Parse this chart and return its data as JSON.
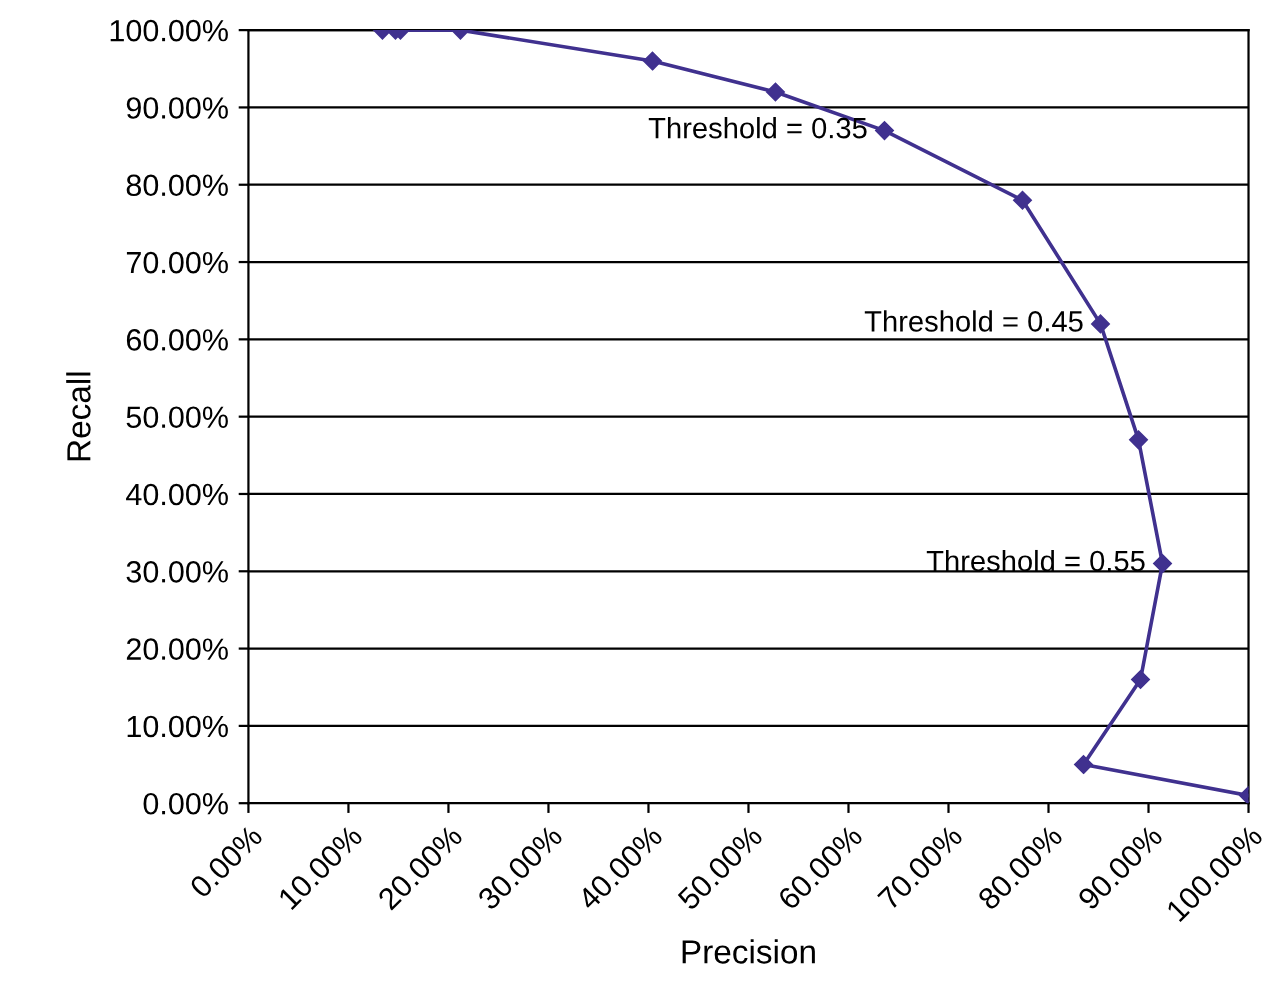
{
  "chart_data": {
    "type": "line",
    "xlabel": "Precision",
    "ylabel": "Recall",
    "series": [
      {
        "color": "#40318f",
        "x": [
          13.4,
          14.7,
          15.2,
          21.2,
          40.4,
          52.7,
          63.6,
          77.4,
          85.2,
          89.0,
          91.4,
          89.2,
          83.5,
          100
        ],
        "values": [
          100,
          100,
          100,
          100,
          96,
          92,
          87,
          78,
          62,
          47,
          31,
          16,
          5,
          1
        ]
      }
    ],
    "marker": "diamond",
    "line_style": "solid",
    "grid": "y",
    "xlim": [
      0,
      100
    ],
    "ylim": [
      0,
      100
    ],
    "xticks": [
      {
        "value": 0,
        "label": "0.00%"
      },
      {
        "value": 10,
        "label": "10.00%"
      },
      {
        "value": 20,
        "label": "20.00%"
      },
      {
        "value": 30,
        "label": "30.00%"
      },
      {
        "value": 40,
        "label": "40.00%"
      },
      {
        "value": 50,
        "label": "50.00%"
      },
      {
        "value": 60,
        "label": "60.00%"
      },
      {
        "value": 70,
        "label": "70.00%"
      },
      {
        "value": 80,
        "label": "80.00%"
      },
      {
        "value": 90,
        "label": "90.00%"
      },
      {
        "value": 100,
        "label": "100.00%"
      }
    ],
    "yticks": [
      {
        "value": 0,
        "label": "0.00%"
      },
      {
        "value": 10,
        "label": "10.00%"
      },
      {
        "value": 20,
        "label": "20.00%"
      },
      {
        "value": 30,
        "label": "30.00%"
      },
      {
        "value": 40,
        "label": "40.00%"
      },
      {
        "value": 50,
        "label": "50.00%"
      },
      {
        "value": 60,
        "label": "60.00%"
      },
      {
        "value": 70,
        "label": "70.00%"
      },
      {
        "value": 80,
        "label": "80.00%"
      },
      {
        "value": 90,
        "label": "90.00%"
      },
      {
        "value": 100,
        "label": "100.00%"
      }
    ],
    "annotations": [
      {
        "text": "Threshold = 0.35",
        "x": 63.6,
        "y": 87
      },
      {
        "text": "Threshold = 0.45",
        "x": 85.2,
        "y": 62
      },
      {
        "text": "Threshold = 0.55",
        "x": 91.4,
        "y": 31
      }
    ]
  }
}
